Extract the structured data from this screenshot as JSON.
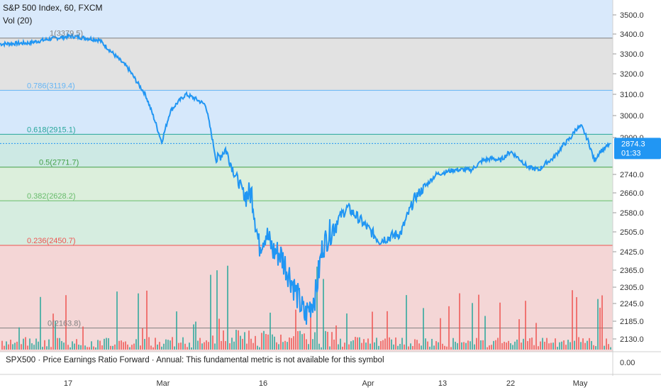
{
  "header": {
    "title": "S&P 500 Index, 60, FXCM",
    "vol_label": "Vol (20)"
  },
  "bottom_pane": {
    "label": "SPX500 · Price Earnings Ratio Forward · Annual: This fundamental metric is not available for this symbol",
    "axis_value": "0.00"
  },
  "price_badge": {
    "value": "2874.3",
    "countdown": "01:33"
  },
  "colors": {
    "line": "#2196f3",
    "vol_up": "#26a69a",
    "vol_down": "#ef5350",
    "fib_1": "#808080",
    "fib_786": "#64b5f6",
    "fib_618": "#26a69a",
    "fib_05": "#43a047",
    "fib_382": "#66bb6a",
    "fib_236": "#ef5350",
    "fib_0": "#808080"
  },
  "chart_data": {
    "type": "line",
    "title": "S&P 500 Index, 60, FXCM",
    "xlabel": "",
    "ylabel": "",
    "ylim": [
      2090,
      3560
    ],
    "y_ticks": [
      "3500.0",
      "3400.0",
      "3300.0",
      "3200.0",
      "3100.0",
      "3000.0",
      "2900.0",
      "2740.0",
      "2660.0",
      "2580.0",
      "2505.0",
      "2425.0",
      "2365.0",
      "2305.0",
      "2245.0",
      "2185.0",
      "2130.0"
    ],
    "x_ticks": [
      "17",
      "Mar",
      "16",
      "Apr",
      "13",
      "22",
      "May"
    ],
    "fib_levels": [
      {
        "ratio": "1",
        "value": 3379.5,
        "label": "1(3379.5)"
      },
      {
        "ratio": "0.786",
        "value": 3119.4,
        "label": "0.786(3119.4)"
      },
      {
        "ratio": "0.618",
        "value": 2915.1,
        "label": "0.618(2915.1)"
      },
      {
        "ratio": "0.5",
        "value": 2771.7,
        "label": "0.5(2771.7)"
      },
      {
        "ratio": "0.382",
        "value": 2628.2,
        "label": "0.382(2628.2)"
      },
      {
        "ratio": "0.236",
        "value": 2450.7,
        "label": "0.236(2450.7)"
      },
      {
        "ratio": "0",
        "value": 2163.8,
        "label": "0(2163.8)"
      }
    ],
    "series": [
      {
        "x": [
          "Feb 10",
          "Feb 13",
          "Feb 17",
          "Feb 19",
          "Feb 21",
          "Feb 24",
          "Feb 25",
          "Feb 26",
          "Feb 27",
          "Feb 28",
          "Mar 2",
          "Mar 3",
          "Mar 4",
          "Mar 5",
          "Mar 6",
          "Mar 9",
          "Mar 10",
          "Mar 11",
          "Mar 12",
          "Mar 13",
          "Mar 16",
          "Mar 17",
          "Mar 18",
          "Mar 19",
          "Mar 20",
          "Mar 23",
          "Mar 24",
          "Mar 25",
          "Mar 26",
          "Mar 27",
          "Mar 30",
          "Mar 31",
          "Apr 1",
          "Apr 2",
          "Apr 3",
          "Apr 6",
          "Apr 7",
          "Apr 8",
          "Apr 9",
          "Apr 13",
          "Apr 14",
          "Apr 15",
          "Apr 16",
          "Apr 17",
          "Apr 20",
          "Apr 21",
          "Apr 22",
          "Apr 23",
          "Apr 24",
          "Apr 27",
          "Apr 28",
          "Apr 29",
          "Apr 30",
          "May 1",
          "May 4",
          "May 5",
          "May 6",
          "May 7"
        ],
        "values": [
          3350,
          3355,
          3375,
          3390,
          3370,
          3230,
          3150,
          3100,
          2980,
          2880,
          3020,
          3060,
          3100,
          3080,
          3050,
          2800,
          2850,
          2750,
          2650,
          2660,
          2450,
          2500,
          2430,
          2420,
          2350,
          2200,
          2280,
          2450,
          2500,
          2550,
          2600,
          2560,
          2470,
          2480,
          2500,
          2640,
          2690,
          2740,
          2760,
          2760,
          2800,
          2810,
          2800,
          2840,
          2800,
          2770,
          2760,
          2790,
          2810,
          2870,
          2900,
          2940,
          2950,
          2880,
          2800,
          2840,
          2850,
          2874
        ]
      }
    ]
  }
}
